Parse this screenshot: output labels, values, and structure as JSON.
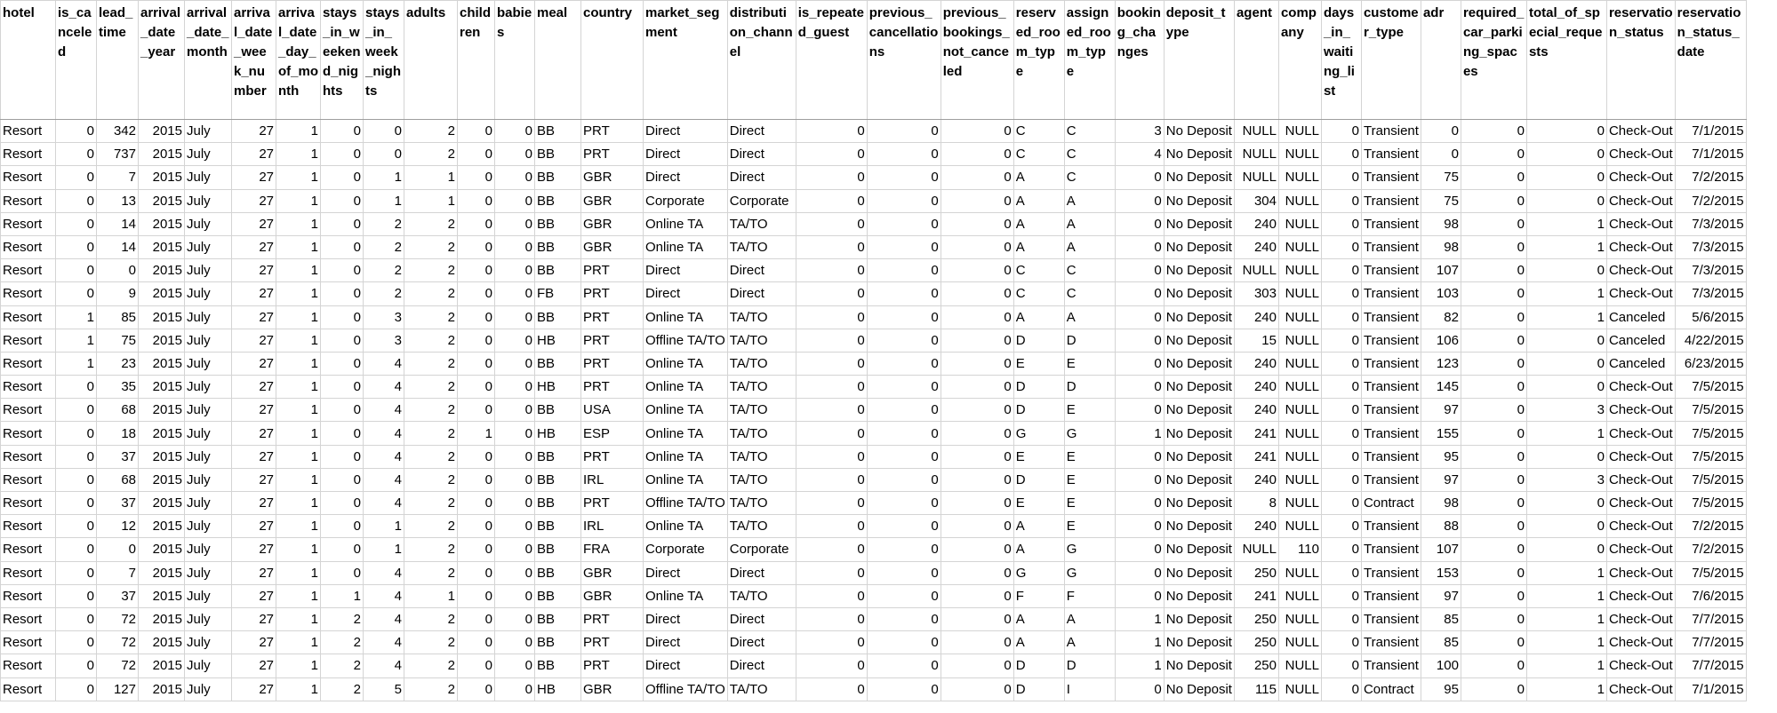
{
  "sheet": {
    "columns": [
      {
        "label": "hotel",
        "type": "txt"
      },
      {
        "label": "is_canceled",
        "type": "num"
      },
      {
        "label": "lead_time",
        "type": "num"
      },
      {
        "label": "arrival_date_year",
        "type": "num"
      },
      {
        "label": "arrival_date_month",
        "type": "txt"
      },
      {
        "label": "arrival_date_week_number",
        "type": "num"
      },
      {
        "label": "arrival_date_day_of_month",
        "type": "num"
      },
      {
        "label": "stays_in_weekend_nights",
        "type": "num"
      },
      {
        "label": "stays_in_week_nights",
        "type": "num"
      },
      {
        "label": "adults",
        "type": "num"
      },
      {
        "label": "children",
        "type": "num"
      },
      {
        "label": "babies",
        "type": "num"
      },
      {
        "label": "meal",
        "type": "txt"
      },
      {
        "label": "country",
        "type": "txt"
      },
      {
        "label": "market_segment",
        "type": "txt"
      },
      {
        "label": "distribution_channel",
        "type": "txt"
      },
      {
        "label": "is_repeated_guest",
        "type": "num"
      },
      {
        "label": "previous_cancellations",
        "type": "num"
      },
      {
        "label": "previous_bookings_not_canceled",
        "type": "num"
      },
      {
        "label": "reserved_room_type",
        "type": "txt"
      },
      {
        "label": "assigned_room_type",
        "type": "txt"
      },
      {
        "label": "booking_changes",
        "type": "num"
      },
      {
        "label": "deposit_type",
        "type": "txt"
      },
      {
        "label": "agent",
        "type": "num"
      },
      {
        "label": "company",
        "type": "num"
      },
      {
        "label": "days_in_waiting_list",
        "type": "num"
      },
      {
        "label": "customer_type",
        "type": "txt"
      },
      {
        "label": "adr",
        "type": "num"
      },
      {
        "label": "required_car_parking_spaces",
        "type": "num"
      },
      {
        "label": "total_of_special_requests",
        "type": "num"
      },
      {
        "label": "reservation_status",
        "type": "txt"
      },
      {
        "label": "reservation_status_date",
        "type": "num"
      }
    ],
    "rows": [
      [
        "Resort",
        "0",
        "342",
        "2015",
        "July",
        "27",
        "1",
        "0",
        "0",
        "2",
        "0",
        "0",
        "BB",
        "PRT",
        "Direct",
        "Direct",
        "0",
        "0",
        "0",
        "C",
        "C",
        "3",
        "No Deposit",
        "NULL",
        "NULL",
        "0",
        "Transient",
        "0",
        "0",
        "0",
        "Check-Out",
        "7/1/2015"
      ],
      [
        "Resort",
        "0",
        "737",
        "2015",
        "July",
        "27",
        "1",
        "0",
        "0",
        "2",
        "0",
        "0",
        "BB",
        "PRT",
        "Direct",
        "Direct",
        "0",
        "0",
        "0",
        "C",
        "C",
        "4",
        "No Deposit",
        "NULL",
        "NULL",
        "0",
        "Transient",
        "0",
        "0",
        "0",
        "Check-Out",
        "7/1/2015"
      ],
      [
        "Resort",
        "0",
        "7",
        "2015",
        "July",
        "27",
        "1",
        "0",
        "1",
        "1",
        "0",
        "0",
        "BB",
        "GBR",
        "Direct",
        "Direct",
        "0",
        "0",
        "0",
        "A",
        "C",
        "0",
        "No Deposit",
        "NULL",
        "NULL",
        "0",
        "Transient",
        "75",
        "0",
        "0",
        "Check-Out",
        "7/2/2015"
      ],
      [
        "Resort",
        "0",
        "13",
        "2015",
        "July",
        "27",
        "1",
        "0",
        "1",
        "1",
        "0",
        "0",
        "BB",
        "GBR",
        "Corporate",
        "Corporate",
        "0",
        "0",
        "0",
        "A",
        "A",
        "0",
        "No Deposit",
        "304",
        "NULL",
        "0",
        "Transient",
        "75",
        "0",
        "0",
        "Check-Out",
        "7/2/2015"
      ],
      [
        "Resort",
        "0",
        "14",
        "2015",
        "July",
        "27",
        "1",
        "0",
        "2",
        "2",
        "0",
        "0",
        "BB",
        "GBR",
        "Online TA",
        "TA/TO",
        "0",
        "0",
        "0",
        "A",
        "A",
        "0",
        "No Deposit",
        "240",
        "NULL",
        "0",
        "Transient",
        "98",
        "0",
        "1",
        "Check-Out",
        "7/3/2015"
      ],
      [
        "Resort",
        "0",
        "14",
        "2015",
        "July",
        "27",
        "1",
        "0",
        "2",
        "2",
        "0",
        "0",
        "BB",
        "GBR",
        "Online TA",
        "TA/TO",
        "0",
        "0",
        "0",
        "A",
        "A",
        "0",
        "No Deposit",
        "240",
        "NULL",
        "0",
        "Transient",
        "98",
        "0",
        "1",
        "Check-Out",
        "7/3/2015"
      ],
      [
        "Resort",
        "0",
        "0",
        "2015",
        "July",
        "27",
        "1",
        "0",
        "2",
        "2",
        "0",
        "0",
        "BB",
        "PRT",
        "Direct",
        "Direct",
        "0",
        "0",
        "0",
        "C",
        "C",
        "0",
        "No Deposit",
        "NULL",
        "NULL",
        "0",
        "Transient",
        "107",
        "0",
        "0",
        "Check-Out",
        "7/3/2015"
      ],
      [
        "Resort",
        "0",
        "9",
        "2015",
        "July",
        "27",
        "1",
        "0",
        "2",
        "2",
        "0",
        "0",
        "FB",
        "PRT",
        "Direct",
        "Direct",
        "0",
        "0",
        "0",
        "C",
        "C",
        "0",
        "No Deposit",
        "303",
        "NULL",
        "0",
        "Transient",
        "103",
        "0",
        "1",
        "Check-Out",
        "7/3/2015"
      ],
      [
        "Resort",
        "1",
        "85",
        "2015",
        "July",
        "27",
        "1",
        "0",
        "3",
        "2",
        "0",
        "0",
        "BB",
        "PRT",
        "Online TA",
        "TA/TO",
        "0",
        "0",
        "0",
        "A",
        "A",
        "0",
        "No Deposit",
        "240",
        "NULL",
        "0",
        "Transient",
        "82",
        "0",
        "1",
        "Canceled",
        "5/6/2015"
      ],
      [
        "Resort",
        "1",
        "75",
        "2015",
        "July",
        "27",
        "1",
        "0",
        "3",
        "2",
        "0",
        "0",
        "HB",
        "PRT",
        "Offline TA/TO",
        "TA/TO",
        "0",
        "0",
        "0",
        "D",
        "D",
        "0",
        "No Deposit",
        "15",
        "NULL",
        "0",
        "Transient",
        "106",
        "0",
        "0",
        "Canceled",
        "4/22/2015"
      ],
      [
        "Resort",
        "1",
        "23",
        "2015",
        "July",
        "27",
        "1",
        "0",
        "4",
        "2",
        "0",
        "0",
        "BB",
        "PRT",
        "Online TA",
        "TA/TO",
        "0",
        "0",
        "0",
        "E",
        "E",
        "0",
        "No Deposit",
        "240",
        "NULL",
        "0",
        "Transient",
        "123",
        "0",
        "0",
        "Canceled",
        "6/23/2015"
      ],
      [
        "Resort",
        "0",
        "35",
        "2015",
        "July",
        "27",
        "1",
        "0",
        "4",
        "2",
        "0",
        "0",
        "HB",
        "PRT",
        "Online TA",
        "TA/TO",
        "0",
        "0",
        "0",
        "D",
        "D",
        "0",
        "No Deposit",
        "240",
        "NULL",
        "0",
        "Transient",
        "145",
        "0",
        "0",
        "Check-Out",
        "7/5/2015"
      ],
      [
        "Resort",
        "0",
        "68",
        "2015",
        "July",
        "27",
        "1",
        "0",
        "4",
        "2",
        "0",
        "0",
        "BB",
        "USA",
        "Online TA",
        "TA/TO",
        "0",
        "0",
        "0",
        "D",
        "E",
        "0",
        "No Deposit",
        "240",
        "NULL",
        "0",
        "Transient",
        "97",
        "0",
        "3",
        "Check-Out",
        "7/5/2015"
      ],
      [
        "Resort",
        "0",
        "18",
        "2015",
        "July",
        "27",
        "1",
        "0",
        "4",
        "2",
        "1",
        "0",
        "HB",
        "ESP",
        "Online TA",
        "TA/TO",
        "0",
        "0",
        "0",
        "G",
        "G",
        "1",
        "No Deposit",
        "241",
        "NULL",
        "0",
        "Transient",
        "155",
        "0",
        "1",
        "Check-Out",
        "7/5/2015"
      ],
      [
        "Resort",
        "0",
        "37",
        "2015",
        "July",
        "27",
        "1",
        "0",
        "4",
        "2",
        "0",
        "0",
        "BB",
        "PRT",
        "Online TA",
        "TA/TO",
        "0",
        "0",
        "0",
        "E",
        "E",
        "0",
        "No Deposit",
        "241",
        "NULL",
        "0",
        "Transient",
        "95",
        "0",
        "0",
        "Check-Out",
        "7/5/2015"
      ],
      [
        "Resort",
        "0",
        "68",
        "2015",
        "July",
        "27",
        "1",
        "0",
        "4",
        "2",
        "0",
        "0",
        "BB",
        "IRL",
        "Online TA",
        "TA/TO",
        "0",
        "0",
        "0",
        "D",
        "E",
        "0",
        "No Deposit",
        "240",
        "NULL",
        "0",
        "Transient",
        "97",
        "0",
        "3",
        "Check-Out",
        "7/5/2015"
      ],
      [
        "Resort",
        "0",
        "37",
        "2015",
        "July",
        "27",
        "1",
        "0",
        "4",
        "2",
        "0",
        "0",
        "BB",
        "PRT",
        "Offline TA/TO",
        "TA/TO",
        "0",
        "0",
        "0",
        "E",
        "E",
        "0",
        "No Deposit",
        "8",
        "NULL",
        "0",
        "Contract",
        "98",
        "0",
        "0",
        "Check-Out",
        "7/5/2015"
      ],
      [
        "Resort",
        "0",
        "12",
        "2015",
        "July",
        "27",
        "1",
        "0",
        "1",
        "2",
        "0",
        "0",
        "BB",
        "IRL",
        "Online TA",
        "TA/TO",
        "0",
        "0",
        "0",
        "A",
        "E",
        "0",
        "No Deposit",
        "240",
        "NULL",
        "0",
        "Transient",
        "88",
        "0",
        "0",
        "Check-Out",
        "7/2/2015"
      ],
      [
        "Resort",
        "0",
        "0",
        "2015",
        "July",
        "27",
        "1",
        "0",
        "1",
        "2",
        "0",
        "0",
        "BB",
        "FRA",
        "Corporate",
        "Corporate",
        "0",
        "0",
        "0",
        "A",
        "G",
        "0",
        "No Deposit",
        "NULL",
        "110",
        "0",
        "Transient",
        "107",
        "0",
        "0",
        "Check-Out",
        "7/2/2015"
      ],
      [
        "Resort",
        "0",
        "7",
        "2015",
        "July",
        "27",
        "1",
        "0",
        "4",
        "2",
        "0",
        "0",
        "BB",
        "GBR",
        "Direct",
        "Direct",
        "0",
        "0",
        "0",
        "G",
        "G",
        "0",
        "No Deposit",
        "250",
        "NULL",
        "0",
        "Transient",
        "153",
        "0",
        "1",
        "Check-Out",
        "7/5/2015"
      ],
      [
        "Resort",
        "0",
        "37",
        "2015",
        "July",
        "27",
        "1",
        "1",
        "4",
        "1",
        "0",
        "0",
        "BB",
        "GBR",
        "Online TA",
        "TA/TO",
        "0",
        "0",
        "0",
        "F",
        "F",
        "0",
        "No Deposit",
        "241",
        "NULL",
        "0",
        "Transient",
        "97",
        "0",
        "1",
        "Check-Out",
        "7/6/2015"
      ],
      [
        "Resort",
        "0",
        "72",
        "2015",
        "July",
        "27",
        "1",
        "2",
        "4",
        "2",
        "0",
        "0",
        "BB",
        "PRT",
        "Direct",
        "Direct",
        "0",
        "0",
        "0",
        "A",
        "A",
        "1",
        "No Deposit",
        "250",
        "NULL",
        "0",
        "Transient",
        "85",
        "0",
        "1",
        "Check-Out",
        "7/7/2015"
      ],
      [
        "Resort",
        "0",
        "72",
        "2015",
        "July",
        "27",
        "1",
        "2",
        "4",
        "2",
        "0",
        "0",
        "BB",
        "PRT",
        "Direct",
        "Direct",
        "0",
        "0",
        "0",
        "A",
        "A",
        "1",
        "No Deposit",
        "250",
        "NULL",
        "0",
        "Transient",
        "85",
        "0",
        "1",
        "Check-Out",
        "7/7/2015"
      ],
      [
        "Resort",
        "0",
        "72",
        "2015",
        "July",
        "27",
        "1",
        "2",
        "4",
        "2",
        "0",
        "0",
        "BB",
        "PRT",
        "Direct",
        "Direct",
        "0",
        "0",
        "0",
        "D",
        "D",
        "1",
        "No Deposit",
        "250",
        "NULL",
        "0",
        "Transient",
        "100",
        "0",
        "1",
        "Check-Out",
        "7/7/2015"
      ],
      [
        "Resort",
        "0",
        "127",
        "2015",
        "July",
        "27",
        "1",
        "2",
        "5",
        "2",
        "0",
        "0",
        "HB",
        "GBR",
        "Offline TA/TO",
        "TA/TO",
        "0",
        "0",
        "0",
        "D",
        "I",
        "0",
        "No Deposit",
        "115",
        "NULL",
        "0",
        "Contract",
        "95",
        "0",
        "1",
        "Check-Out",
        "7/1/2015"
      ]
    ]
  }
}
